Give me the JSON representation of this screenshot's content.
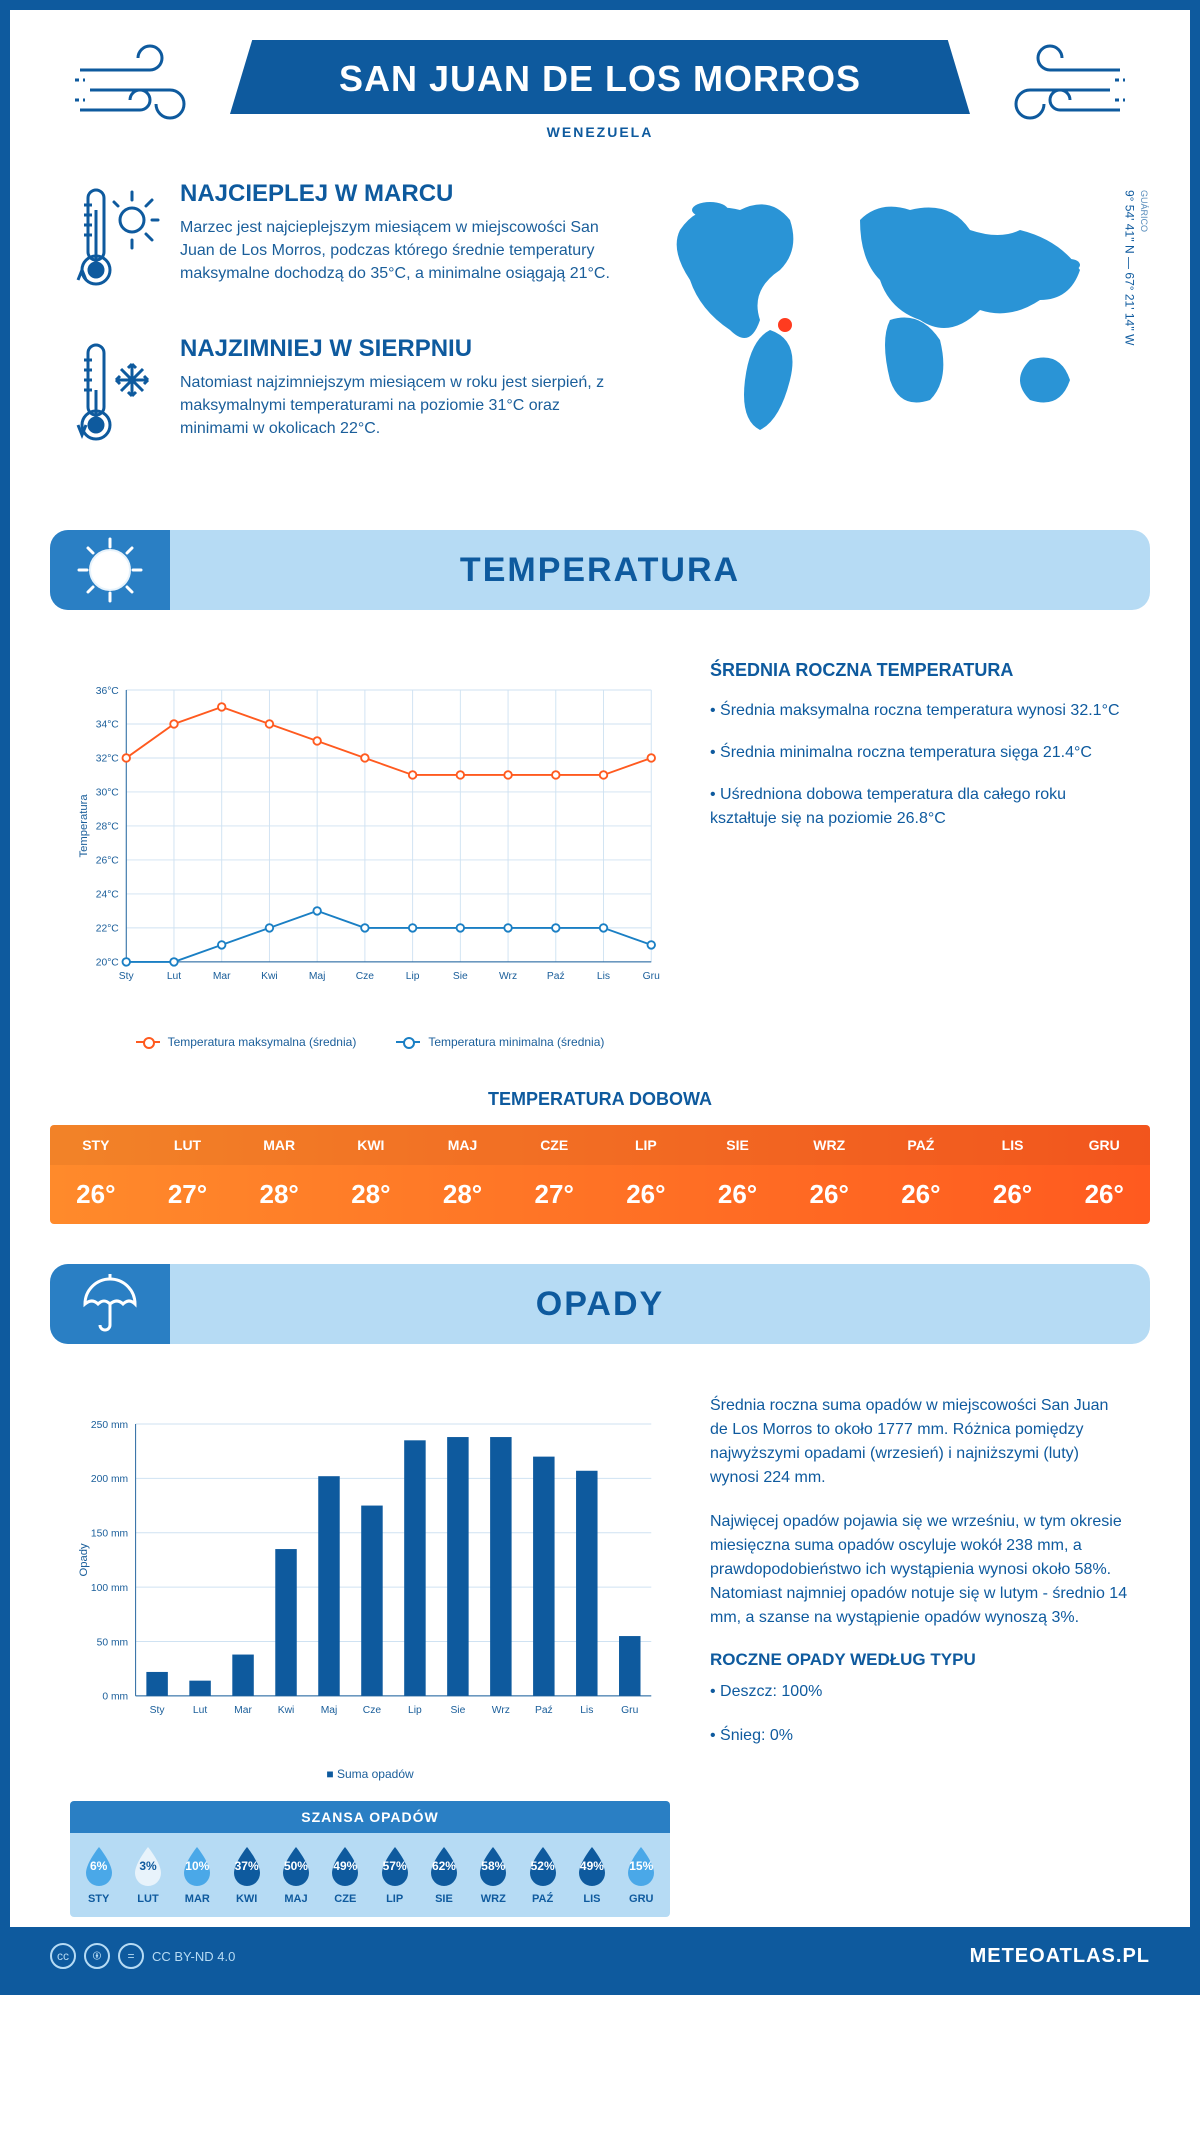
{
  "header": {
    "title": "SAN JUAN DE LOS MORROS",
    "country": "WENEZUELA"
  },
  "coords": {
    "region": "GUÁRICO",
    "lat": "9° 54' 41'' N",
    "lon": "67° 21' 14'' W"
  },
  "facts": {
    "hot": {
      "title": "NAJCIEPLEJ W MARCU",
      "text": "Marzec jest najcieplejszym miesiącem w miejscowości San Juan de Los Morros, podczas którego średnie temperatury maksymalne dochodzą do 35°C, a minimalne osiągają 21°C."
    },
    "cold": {
      "title": "NAJZIMNIEJ W SIERPNIU",
      "text": "Natomiast najzimniejszym miesiącem w roku jest sierpień, z maksymalnymi temperaturami na poziomie 31°C oraz minimami w okolicach 22°C."
    }
  },
  "temperature_section": {
    "title": "TEMPERATURA",
    "chart": {
      "type": "line",
      "months": [
        "Sty",
        "Lut",
        "Mar",
        "Kwi",
        "Maj",
        "Cze",
        "Lip",
        "Sie",
        "Wrz",
        "Paź",
        "Lis",
        "Gru"
      ],
      "series_max": {
        "label": "Temperatura maksymalna (średnia)",
        "color": "#ff5a1f",
        "values": [
          32,
          34,
          35,
          34,
          33,
          32,
          31,
          31,
          31,
          31,
          31,
          32
        ]
      },
      "series_min": {
        "label": "Temperatura minimalna (średnia)",
        "color": "#1a7fc4",
        "values": [
          20,
          20,
          21,
          22,
          23,
          22,
          22,
          22,
          22,
          22,
          22,
          21
        ]
      },
      "ylabel": "Temperatura",
      "ylim": [
        20,
        36
      ],
      "ytick_step": 2,
      "grid_color": "#cfe2f2",
      "background": "#ffffff",
      "line_width": 2,
      "marker": "circle-open"
    },
    "summary": {
      "title": "ŚREDNIA ROCZNA TEMPERATURA",
      "bullets": [
        "Średnia maksymalna roczna temperatura wynosi 32.1°C",
        "Średnia minimalna roczna temperatura sięga 21.4°C",
        "Uśredniona dobowa temperatura dla całego roku kształtuje się na poziomie 26.8°C"
      ]
    },
    "daily": {
      "title": "TEMPERATURA DOBOWA",
      "months": [
        "STY",
        "LUT",
        "MAR",
        "KWI",
        "MAJ",
        "CZE",
        "LIP",
        "SIE",
        "WRZ",
        "PAŹ",
        "LIS",
        "GRU"
      ],
      "values": [
        "26°",
        "27°",
        "28°",
        "28°",
        "28°",
        "27°",
        "26°",
        "26°",
        "26°",
        "26°",
        "26°",
        "26°"
      ],
      "gradient_from": "#ff8a2b",
      "gradient_to": "#ff5a1f"
    }
  },
  "precip_section": {
    "title": "OPADY",
    "chart": {
      "type": "bar",
      "months": [
        "Sty",
        "Lut",
        "Mar",
        "Kwi",
        "Maj",
        "Cze",
        "Lip",
        "Sie",
        "Wrz",
        "Paź",
        "Lis",
        "Gru"
      ],
      "values": [
        22,
        14,
        38,
        135,
        202,
        175,
        235,
        238,
        238,
        220,
        207,
        55
      ],
      "bar_color": "#0e5a9e",
      "ylabel": "Opady",
      "ylim": [
        0,
        250
      ],
      "ytick_step": 50,
      "y_unit": "mm",
      "grid_color": "#cfe2f2",
      "series_label": "Suma opadów",
      "bar_width": 0.5
    },
    "paragraphs": [
      "Średnia roczna suma opadów w miejscowości San Juan de Los Morros to około 1777 mm. Różnica pomiędzy najwyższymi opadami (wrzesień) i najniższymi (luty) wynosi 224 mm.",
      "Najwięcej opadów pojawia się we wrześniu, w tym okresie miesięczna suma opadów oscyluje wokół 238 mm, a prawdopodobieństwo ich wystąpienia wynosi około 58%. Natomiast najmniej opadów notuje się w lutym - średnio 14 mm, a szanse na wystąpienie opadów wynoszą 3%."
    ],
    "chance": {
      "title": "SZANSA OPADÓW",
      "months": [
        "STY",
        "LUT",
        "MAR",
        "KWI",
        "MAJ",
        "CZE",
        "LIP",
        "SIE",
        "WRZ",
        "PAŹ",
        "LIS",
        "GRU"
      ],
      "values": [
        6,
        3,
        10,
        37,
        50,
        49,
        57,
        62,
        58,
        52,
        49,
        15
      ],
      "drop_dark": "#0e5a9e",
      "drop_light": "#e8f3fb",
      "drop_accent": "#4aa8e8",
      "panel_bg": "#b6dbf4",
      "header_bg": "#2a7fc4"
    },
    "by_type": {
      "title": "ROCZNE OPADY WEDŁUG TYPU",
      "items": [
        "Deszcz: 100%",
        "Śnieg: 0%"
      ]
    }
  },
  "footer": {
    "license": "CC BY-ND 4.0",
    "brand": "METEOATLAS.PL"
  },
  "palette": {
    "primary": "#0e5a9e",
    "light_blue": "#b6dbf4",
    "mid_blue": "#2a7fc4",
    "orange": "#ff5a1f"
  }
}
